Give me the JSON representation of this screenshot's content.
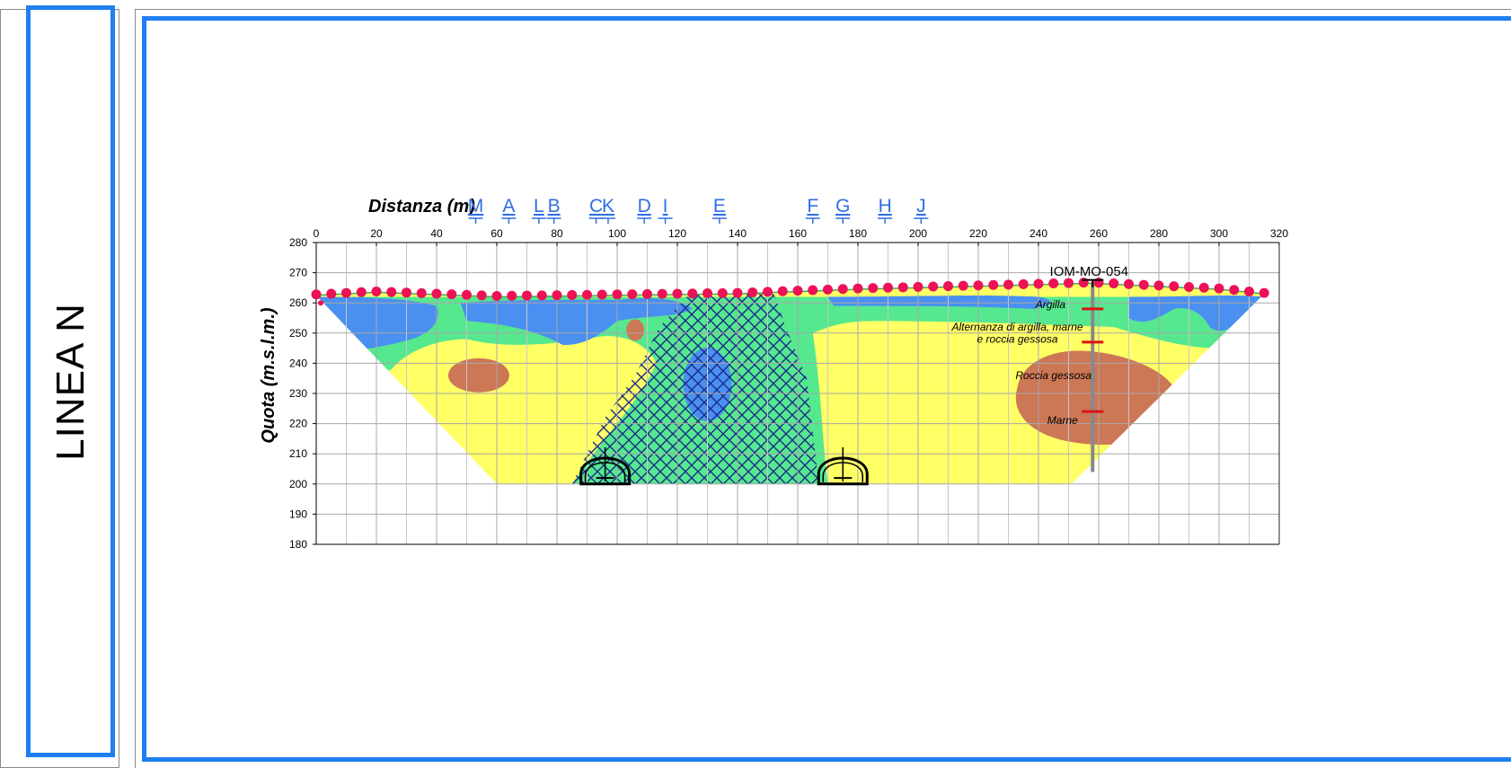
{
  "side_title": "LINEA N",
  "chart_data": {
    "type": "cross-section",
    "xlabel": "Distanza (m)",
    "ylabel": "Quota (m.s.l.m.)",
    "x_ticks": [
      "0",
      "20",
      "40",
      "60",
      "80",
      "100",
      "120",
      "140",
      "160",
      "180",
      "200",
      "220",
      "240",
      "260",
      "280",
      "300",
      "320"
    ],
    "y_ticks": [
      "280",
      "270",
      "260",
      "250",
      "240",
      "230",
      "220",
      "210",
      "200",
      "190",
      "180"
    ],
    "xlim": [
      0,
      320
    ],
    "ylim": [
      180,
      280
    ],
    "grid": true,
    "line_markers": [
      {
        "label": "M",
        "x": 53
      },
      {
        "label": "A",
        "x": 64
      },
      {
        "label": "L",
        "x": 74
      },
      {
        "label": "B",
        "x": 79
      },
      {
        "label": "C",
        "x": 93
      },
      {
        "label": "K",
        "x": 97
      },
      {
        "label": "D",
        "x": 109
      },
      {
        "label": "I",
        "x": 116
      },
      {
        "label": "E",
        "x": 134
      },
      {
        "label": "F",
        "x": 165
      },
      {
        "label": "G",
        "x": 175
      },
      {
        "label": "H",
        "x": 189
      },
      {
        "label": "J",
        "x": 201
      }
    ],
    "borehole": {
      "label": "IOM-MO-054",
      "x": 258,
      "top": 267,
      "bottom": 204,
      "boundaries": [
        258,
        247,
        224
      ]
    },
    "geology_labels": {
      "argilla": "Argilla",
      "alternanza_1": "Alternanza di argilla, marne",
      "alternanza_2": "e roccia gessosa",
      "roccia": "Roccia gessosa",
      "marne": "Marne"
    },
    "tunnels": [
      {
        "x": 96,
        "y": 205
      },
      {
        "x": 175,
        "y": 205
      }
    ],
    "electrodes_x": [
      0,
      5,
      10,
      15,
      20,
      25,
      30,
      35,
      40,
      45,
      50,
      55,
      60,
      65,
      70,
      75,
      80,
      85,
      90,
      95,
      100,
      105,
      110,
      115,
      120,
      125,
      130,
      135,
      140,
      145,
      150,
      155,
      160,
      165,
      170,
      175,
      180,
      185,
      190,
      195,
      200,
      205,
      210,
      215,
      220,
      225,
      230,
      235,
      240,
      245,
      250,
      255,
      260,
      265,
      270,
      275,
      280,
      285,
      290,
      295,
      300,
      305,
      310,
      315
    ],
    "colors": {
      "yellow": "#ffff66",
      "green": "#55e88f",
      "blue": "#4a90f0",
      "brown": "#cc7755",
      "hatch": "#1a2a8a",
      "electrode": "#ee1155",
      "marker": "#2f6fe0",
      "borehole_tick": "#dd1111"
    }
  }
}
